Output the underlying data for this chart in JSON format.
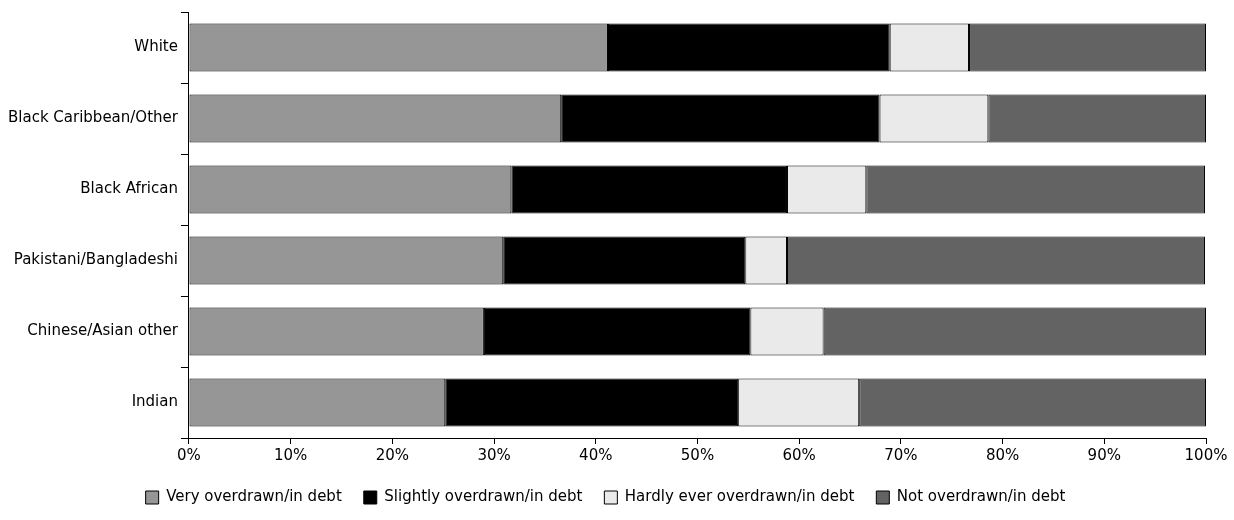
{
  "chart_data": {
    "type": "bar",
    "orientation": "horizontal",
    "stacked": true,
    "categories": [
      "White",
      "Black Caribbean/Other",
      "Black African",
      "Pakistani/Bangladeshi",
      "Chinese/Asian other",
      "Indian"
    ],
    "series": [
      {
        "name": "Very overdrawn/in debt",
        "color": "#969696",
        "values": [
          41.2,
          36.6,
          31.7,
          30.9,
          29.0,
          25.2
        ]
      },
      {
        "name": "Slightly overdrawn/in debt",
        "color": "#000000",
        "values": [
          27.7,
          31.3,
          27.1,
          23.8,
          26.2,
          28.8
        ]
      },
      {
        "name": "Hardly ever overdrawn/in debt",
        "color": "#eaeaea",
        "values": [
          7.8,
          10.7,
          7.8,
          4.1,
          7.2,
          11.9
        ]
      },
      {
        "name": "Not overdrawn/in debt",
        "color": "#636363",
        "values": [
          23.3,
          21.4,
          33.3,
          41.1,
          37.6,
          34.1
        ]
      }
    ],
    "xlim": [
      0,
      100
    ],
    "xticks": [
      {
        "value": 0,
        "label": "0%"
      },
      {
        "value": 10,
        "label": "10%"
      },
      {
        "value": 20,
        "label": "20%"
      },
      {
        "value": 30,
        "label": "30%"
      },
      {
        "value": 40,
        "label": "40%"
      },
      {
        "value": 50,
        "label": "50%"
      },
      {
        "value": 60,
        "label": "60%"
      },
      {
        "value": 70,
        "label": "70%"
      },
      {
        "value": 80,
        "label": "80%"
      },
      {
        "value": 90,
        "label": "90%"
      },
      {
        "value": 100,
        "label": "100%"
      }
    ],
    "grid": false,
    "legend": "bottom"
  }
}
